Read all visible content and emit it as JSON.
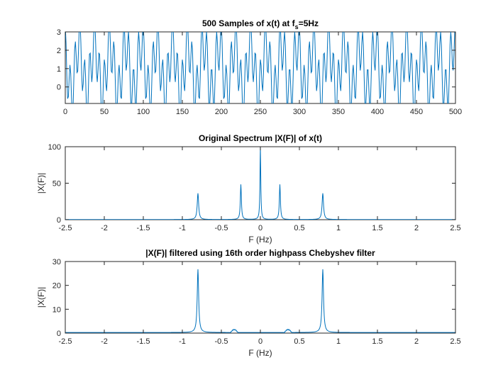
{
  "chart_data": [
    {
      "type": "line",
      "title": "500 Samples of x(t) at f",
      "title_sub": "s",
      "title_tail": "=5Hz",
      "xlabel": "",
      "ylabel": "",
      "xlim": [
        0,
        500
      ],
      "ylim": [
        -0.9,
        3
      ],
      "xticks": [
        0,
        50,
        100,
        150,
        200,
        250,
        300,
        350,
        400,
        450,
        500
      ],
      "yticks": [
        0,
        1,
        2,
        3
      ],
      "color": "#0072BD",
      "series": [
        {
          "signal": {
            "samples": 500,
            "fs": 5,
            "offset": 1,
            "components": [
              {
                "freq": 0.8,
                "amp": 0.72
              },
              {
                "freq": -0.8,
                "amp": 0.72
              },
              {
                "freq": 0.25,
                "amp": 0.95
              },
              {
                "freq": 0.25,
                "amp": 0.95,
                "phase": 1.5708
              }
            ]
          }
        }
      ]
    },
    {
      "type": "line",
      "title": "Original Spectrum |X(F)| of x(t)",
      "xlabel": "F (Hz)",
      "ylabel": "|X(F)|",
      "xlim": [
        -2.5,
        2.5
      ],
      "ylim": [
        0,
        100
      ],
      "xticks": [
        -2.5,
        -2,
        -1.5,
        -1,
        -0.5,
        0,
        0.5,
        1,
        1.5,
        2,
        2.5
      ],
      "yticks": [
        0,
        50,
        100
      ],
      "color": "#0072BD",
      "series": [
        {
          "peaks": [
            {
              "f": -0.8,
              "height": 36,
              "width": 0.011
            },
            {
              "f": -0.25,
              "height": 48,
              "width": 0.008
            },
            {
              "f": 0,
              "height": 100,
              "width": 0.006
            },
            {
              "f": 0.25,
              "height": 48,
              "width": 0.008
            },
            {
              "f": 0.8,
              "height": 36,
              "width": 0.011
            }
          ]
        }
      ]
    },
    {
      "type": "line",
      "title": "|X(F)| filtered using 16th order highpass Chebyshev filter",
      "xlabel": "F (Hz)",
      "ylabel": "|X(F)|",
      "xlim": [
        -2.5,
        2.5
      ],
      "ylim": [
        0,
        30
      ],
      "xticks": [
        -2.5,
        -2,
        -1.5,
        -1,
        -0.5,
        0,
        0.5,
        1,
        1.5,
        2,
        2.5
      ],
      "yticks": [
        0,
        10,
        20,
        30
      ],
      "color": "#0072BD",
      "series": [
        {
          "peaks": [
            {
              "f": -0.8,
              "height": 26.5,
              "width": 0.011
            },
            {
              "f": 0.8,
              "height": 26.5,
              "width": 0.011
            }
          ],
          "bumps": [
            {
              "from": -0.38,
              "to": -0.29,
              "height": 1.2
            },
            {
              "from": 0.31,
              "to": 0.4,
              "height": 1.2
            }
          ]
        }
      ]
    }
  ]
}
